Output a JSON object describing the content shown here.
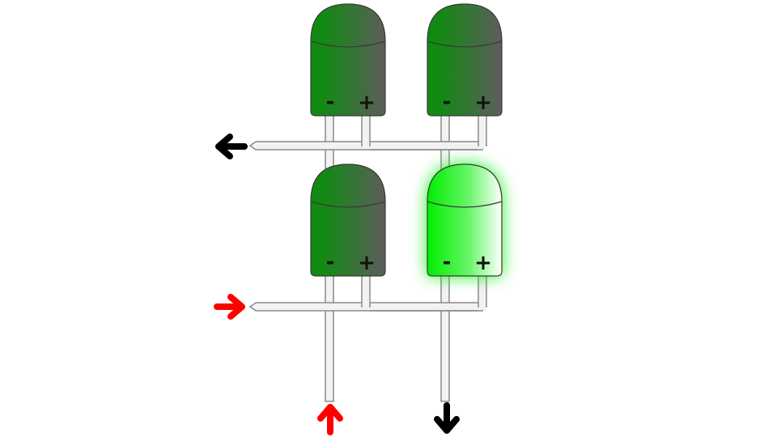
{
  "colors": {
    "led_off_dark": "#118a11",
    "led_off_light": "#5d5d5d",
    "led_on": "#00ee00",
    "wire_fill": "#f2f2f2",
    "wire_stroke": "#8a8a8a",
    "arrow_active": "#ff0000",
    "arrow_inactive": "#000000"
  },
  "leds": [
    {
      "id": "top-left",
      "lit": false,
      "minus": "-",
      "plus": "+"
    },
    {
      "id": "top-right",
      "lit": false,
      "minus": "-",
      "plus": "+"
    },
    {
      "id": "bottom-left",
      "lit": false,
      "minus": "-",
      "plus": "+"
    },
    {
      "id": "bottom-right",
      "lit": true,
      "minus": "-",
      "plus": "+"
    }
  ],
  "arrows": [
    {
      "id": "row-1",
      "direction": "left",
      "active": false,
      "icon": "arrow-left-icon"
    },
    {
      "id": "row-2",
      "direction": "right",
      "active": true,
      "icon": "arrow-right-icon"
    },
    {
      "id": "col-1",
      "direction": "up",
      "active": true,
      "icon": "arrow-up-icon"
    },
    {
      "id": "col-2",
      "direction": "down",
      "active": false,
      "icon": "arrow-down-icon"
    }
  ]
}
